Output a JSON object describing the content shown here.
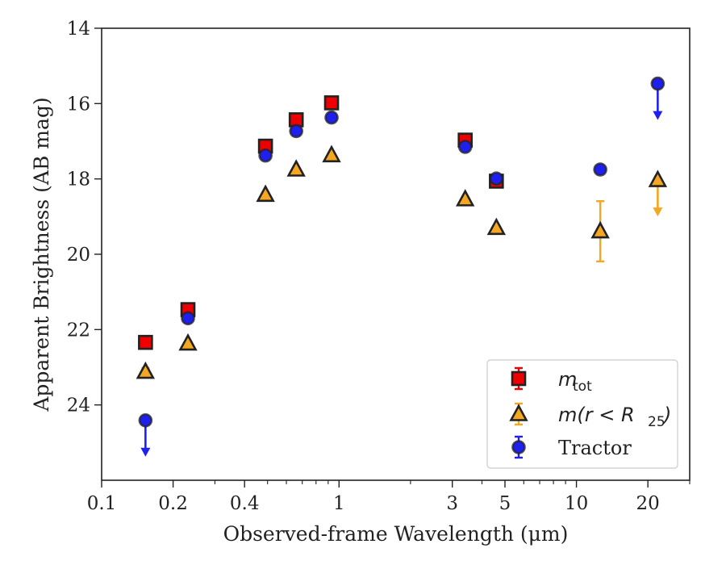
{
  "chart_data": {
    "type": "scatter",
    "xlabel": "Observed-frame Wavelength (μm)",
    "ylabel": "Apparent Brightness (AB mag)",
    "x_scale": "log",
    "xlim": [
      0.1,
      30
    ],
    "ylim": [
      26.0,
      14.0
    ],
    "y_inverted": true,
    "x_ticks": [
      0.1,
      0.2,
      0.4,
      1,
      3,
      5,
      10,
      20
    ],
    "x_tick_labels": [
      "0.1",
      "0.2",
      "0.4",
      "1",
      "3",
      "5",
      "10",
      "20"
    ],
    "y_ticks": [
      14,
      16,
      18,
      20,
      22,
      24
    ],
    "y_tick_labels": [
      "14",
      "16",
      "18",
      "20",
      "22",
      "24"
    ],
    "grid": false,
    "legend_position": "lower-right",
    "series": [
      {
        "name": "m_tot",
        "legend_label": "m_tot",
        "marker": "square",
        "color": "#ee0000",
        "errorbar_color": "#ee0000",
        "points": [
          {
            "x": 0.153,
            "y": 22.34,
            "yerr": 0.05
          },
          {
            "x": 0.231,
            "y": 21.47,
            "yerr": 0.05
          },
          {
            "x": 0.49,
            "y": 17.13,
            "yerr": 0.03
          },
          {
            "x": 0.66,
            "y": 16.43,
            "yerr": 0.03
          },
          {
            "x": 0.93,
            "y": 15.98,
            "yerr": 0.03
          },
          {
            "x": 3.4,
            "y": 16.97,
            "yerr": 0.03
          },
          {
            "x": 4.6,
            "y": 18.06,
            "yerr": 0.05
          }
        ]
      },
      {
        "name": "m(r < R_25)",
        "legend_label": "m(r < R25)",
        "marker": "triangle",
        "color": "#f5a623",
        "errorbar_color": "#f5a623",
        "points": [
          {
            "x": 0.153,
            "y": 23.12,
            "yerr": 0.1
          },
          {
            "x": 0.231,
            "y": 22.37,
            "yerr": 0.05
          },
          {
            "x": 0.49,
            "y": 18.42,
            "yerr": 0.03
          },
          {
            "x": 0.66,
            "y": 17.75,
            "yerr": 0.03
          },
          {
            "x": 0.93,
            "y": 17.37,
            "yerr": 0.03
          },
          {
            "x": 3.4,
            "y": 18.54,
            "yerr": 0.03
          },
          {
            "x": 4.6,
            "y": 19.3,
            "yerr": 0.05
          },
          {
            "x": 12.6,
            "y": 19.39,
            "yerr": 0.8
          },
          {
            "x": 22.0,
            "y": 18.03,
            "upper_limit": true
          }
        ]
      },
      {
        "name": "Tractor",
        "legend_label": "Tractor",
        "marker": "circle",
        "color": "#2020ee",
        "errorbar_color": "#2020ee",
        "points": [
          {
            "x": 0.153,
            "y": 24.41,
            "upper_limit": true
          },
          {
            "x": 0.231,
            "y": 21.7,
            "yerr": 0.05
          },
          {
            "x": 0.49,
            "y": 17.38,
            "yerr": 0.03
          },
          {
            "x": 0.66,
            "y": 16.73,
            "yerr": 0.03
          },
          {
            "x": 0.93,
            "y": 16.37,
            "yerr": 0.03
          },
          {
            "x": 3.4,
            "y": 17.15,
            "yerr": 0.03
          },
          {
            "x": 4.6,
            "y": 17.99,
            "yerr": 0.05
          },
          {
            "x": 12.6,
            "y": 17.75,
            "yerr": 0.05
          },
          {
            "x": 22.0,
            "y": 15.47,
            "upper_limit": true
          }
        ]
      }
    ]
  }
}
